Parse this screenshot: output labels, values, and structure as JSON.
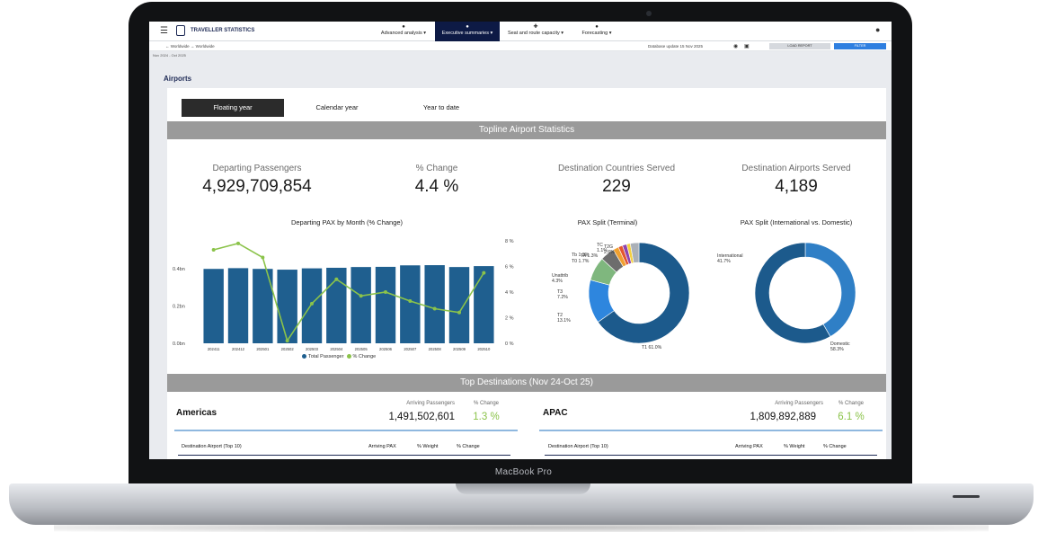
{
  "device": {
    "brand": "MacBook Pro"
  },
  "app": {
    "title": "TRAVELLER STATISTICS",
    "nav": [
      {
        "label": "Advanced analysis ▾",
        "icon": "chart-icon"
      },
      {
        "label": "Executive summaries ▾",
        "icon": "summary-icon",
        "active": true
      },
      {
        "label": "Seat and route capacity ▾",
        "icon": "seat-icon"
      },
      {
        "label": "Forecasting ▾",
        "icon": "forecast-icon"
      }
    ]
  },
  "breadcrumb": {
    "text": "← Worldwide → Worldwide"
  },
  "header": {
    "database_update": "Database update 15 Nov 2025",
    "load_report": "LOAD REPORT",
    "filter": "FILTER",
    "date_range": "Nov 2024 - Oct 2025"
  },
  "page": {
    "title": "Airports"
  },
  "tabs": [
    {
      "label": "Floating year",
      "active": true
    },
    {
      "label": "Calendar year",
      "active": false
    },
    {
      "label": "Year to date",
      "active": false
    }
  ],
  "topline": {
    "title": "Topline Airport Statistics",
    "kpis": [
      {
        "label": "Departing Passengers",
        "value": "4,929,709,854"
      },
      {
        "label": "% Change",
        "value": "4.4 %"
      },
      {
        "label": "Destination Countries Served",
        "value": "229"
      },
      {
        "label": "Destination Airports Served",
        "value": "4,189"
      }
    ]
  },
  "chart_data": [
    {
      "type": "bar",
      "title": "Departing PAX by Month (% Change)",
      "categories": [
        "202411",
        "202412",
        "202501",
        "202502",
        "202503",
        "202504",
        "202505",
        "202506",
        "202507",
        "202508",
        "202509",
        "202510"
      ],
      "series": [
        {
          "name": "Total Passenger",
          "type": "bar",
          "axis": "left",
          "values": [
            0.398,
            0.402,
            0.398,
            0.394,
            0.401,
            0.404,
            0.408,
            0.409,
            0.417,
            0.418,
            0.408,
            0.413
          ]
        },
        {
          "name": "% Change",
          "type": "line",
          "axis": "right",
          "values": [
            7.3,
            7.8,
            6.7,
            0.2,
            3.1,
            5.0,
            3.7,
            4.0,
            3.3,
            2.7,
            2.4,
            5.5
          ]
        }
      ],
      "y_left": {
        "ticks": [
          "0.4bn",
          "0.2bn",
          "0.0bn"
        ]
      },
      "y_right": {
        "ticks": [
          "8 %",
          "6 %",
          "4 %",
          "2 %",
          "0 %"
        ],
        "ylim": [
          0,
          8
        ]
      },
      "colors": {
        "bar": "#1f5f8f",
        "line": "#8bc34a"
      },
      "legend": "bottom"
    },
    {
      "type": "pie",
      "title": "PAX Split (Terminal)",
      "donut": true,
      "labels": [
        "T1",
        "T2",
        "T3",
        "Unattributed",
        "T0",
        "TA",
        "Tb",
        "TC",
        "T2G"
      ],
      "values": [
        61.0,
        13.1,
        7.2,
        4.3,
        1.7,
        1.3,
        1.3,
        1.1,
        2.6
      ],
      "slice_labels": [
        "T1 61.0%",
        "T2\n13.1%",
        "T3\n7.2%",
        "Unattrib\n4.3%",
        "T0 1.7%",
        "TA 1.3%",
        "Tb 1.3%",
        "TC\n1.1%",
        "T2G\n2.6%"
      ],
      "colors": [
        "#1c5a8c",
        "#2e86de",
        "#7fb77e",
        "#6d6d6d",
        "#f0a030",
        "#e3562f",
        "#8e44ad",
        "#f4d03f",
        "#aab0b8"
      ]
    },
    {
      "type": "pie",
      "title": "PAX Split (International vs. Domestic)",
      "donut": true,
      "labels": [
        "International",
        "Domestic"
      ],
      "values": [
        41.7,
        58.3
      ],
      "slice_labels": [
        "International\n41.7%",
        "Domestic\n58.3%"
      ],
      "colors": [
        "#2f7fc6",
        "#1c5a8c"
      ]
    }
  ],
  "legend_labels": {
    "bar": "Total Passenger",
    "line": "% Change"
  },
  "destinations": {
    "title": "Top Destinations (Nov 24-Oct 25)",
    "regions": [
      {
        "name": "Americas",
        "arriving_label": "Arriving Passengers",
        "arriving_value": "1,491,502,601",
        "change_label": "% Change",
        "change_value": "1.3 %"
      },
      {
        "name": "APAC",
        "arriving_label": "Arriving Passengers",
        "arriving_value": "1,809,892,889",
        "change_label": "% Change",
        "change_value": "6.1 %"
      }
    ],
    "table_headers": [
      "Destination Airport (Top 10)",
      "Arriving PAX",
      "% Weight",
      "% Change"
    ]
  }
}
